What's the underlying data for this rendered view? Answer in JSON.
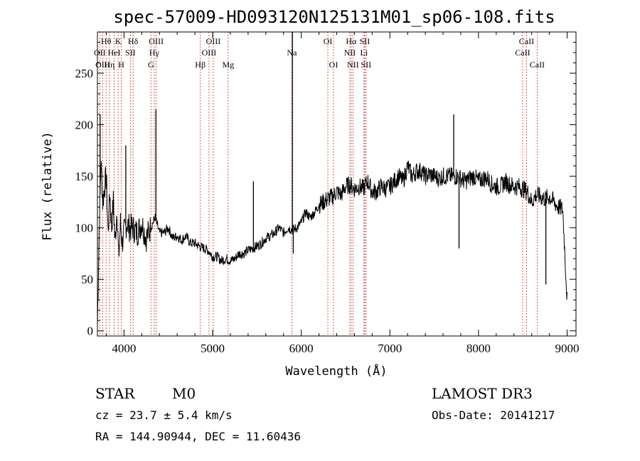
{
  "chart_data": {
    "type": "line",
    "title": "spec-57009-HD093120N125131M01_sp06-108.fits",
    "xlabel": "Wavelength (Å)",
    "ylabel": "Flux (relative)",
    "xlim": [
      3700,
      9100
    ],
    "ylim": [
      -5,
      290
    ],
    "x_ticks": [
      4000,
      5000,
      6000,
      7000,
      8000,
      9000
    ],
    "y_ticks": [
      0,
      50,
      100,
      150,
      200,
      250
    ],
    "series": [
      {
        "x": [
          3700,
          3720,
          3740,
          3760,
          3780,
          3800,
          3820,
          3840,
          3860,
          3880,
          3900,
          3920,
          3940,
          3960,
          3980,
          4000,
          4030,
          4060,
          4100,
          4150,
          4200,
          4250,
          4300,
          4350,
          4400,
          4450,
          4500,
          4550,
          4600,
          4650,
          4700,
          4750,
          4800,
          4850,
          4900,
          4950,
          5000,
          5050,
          5100,
          5150,
          5200,
          5250,
          5300,
          5350,
          5400,
          5450,
          5500,
          5550,
          5600,
          5650,
          5700,
          5750,
          5800,
          5850,
          5900,
          5950,
          6000,
          6050,
          6100,
          6150,
          6200,
          6250,
          6300,
          6350,
          6400,
          6450,
          6500,
          6550,
          6600,
          6650,
          6700,
          6750,
          6800,
          6850,
          6900,
          6950,
          7000,
          7050,
          7100,
          7150,
          7200,
          7250,
          7300,
          7350,
          7400,
          7450,
          7500,
          7550,
          7600,
          7650,
          7700,
          7750,
          7800,
          7850,
          7900,
          7950,
          8000,
          8050,
          8100,
          8150,
          8200,
          8250,
          8300,
          8350,
          8400,
          8450,
          8500,
          8550,
          8600,
          8650,
          8700,
          8750,
          8800,
          8850,
          8900,
          8950,
          9000
        ],
        "values": [
          5,
          100,
          165,
          125,
          140,
          150,
          95,
          135,
          100,
          125,
          85,
          120,
          70,
          105,
          85,
          95,
          105,
          100,
          100,
          95,
          105,
          90,
          100,
          110,
          95,
          95,
          100,
          90,
          92,
          88,
          92,
          85,
          85,
          82,
          80,
          78,
          72,
          72,
          68,
          70,
          68,
          70,
          75,
          75,
          78,
          80,
          82,
          85,
          90,
          92,
          95,
          100,
          95,
          100,
          98,
          100,
          105,
          115,
          110,
          115,
          122,
          125,
          128,
          130,
          135,
          132,
          140,
          142,
          138,
          140,
          138,
          145,
          135,
          135,
          140,
          138,
          140,
          145,
          150,
          145,
          160,
          150,
          155,
          155,
          150,
          152,
          150,
          148,
          150,
          150,
          150,
          150,
          148,
          145,
          148,
          150,
          145,
          148,
          148,
          142,
          140,
          140,
          145,
          142,
          140,
          140,
          138,
          135,
          125,
          132,
          130,
          128,
          130,
          125,
          120,
          118,
          30
        ]
      }
    ],
    "line_markers": [
      {
        "label": "Hθ",
        "wavelength": 3798,
        "row": 1
      },
      {
        "label": "OII",
        "wavelength": 3727,
        "row": 2
      },
      {
        "label": "OIII",
        "wavelength": 3760,
        "row": 3
      },
      {
        "label": "Hη",
        "wavelength": 3835,
        "row": 3
      },
      {
        "label": "HeI",
        "wavelength": 3889,
        "row": 2
      },
      {
        "label": "K",
        "wavelength": 3934,
        "row": 1
      },
      {
        "label": "H",
        "wavelength": 3969,
        "row": 3
      },
      {
        "label": "SII",
        "wavelength": 4072,
        "row": 2
      },
      {
        "label": "Hδ",
        "wavelength": 4102,
        "row": 1
      },
      {
        "label": "G",
        "wavelength": 4304,
        "row": 3
      },
      {
        "label": "Hγ",
        "wavelength": 4341,
        "row": 2
      },
      {
        "label": "OIII",
        "wavelength": 4363,
        "row": 1
      },
      {
        "label": "Hβ",
        "wavelength": 4861,
        "row": 3
      },
      {
        "label": "OIII",
        "wavelength": 4959,
        "row": 2
      },
      {
        "label": "OIII",
        "wavelength": 5007,
        "row": 1
      },
      {
        "label": "Mg",
        "wavelength": 5175,
        "row": 3
      },
      {
        "label": "Na",
        "wavelength": 5894,
        "row": 2
      },
      {
        "label": "OI",
        "wavelength": 6300,
        "row": 1
      },
      {
        "label": "OI",
        "wavelength": 6364,
        "row": 3
      },
      {
        "label": "NII",
        "wavelength": 6548,
        "row": 2
      },
      {
        "label": "Hα",
        "wavelength": 6563,
        "row": 1
      },
      {
        "label": "NII",
        "wavelength": 6583,
        "row": 3
      },
      {
        "label": "SII",
        "wavelength": 6716,
        "row": 1
      },
      {
        "label": "Li",
        "wavelength": 6708,
        "row": 2
      },
      {
        "label": "SII",
        "wavelength": 6731,
        "row": 3
      },
      {
        "label": "CaII",
        "wavelength": 8498,
        "row": 2
      },
      {
        "label": "CaII",
        "wavelength": 8542,
        "row": 1
      },
      {
        "label": "CaII",
        "wavelength": 8662,
        "row": 3
      }
    ],
    "spikes": [
      {
        "x": 3730,
        "value": 210
      },
      {
        "x": 4020,
        "value": 180
      },
      {
        "x": 4360,
        "value": 215
      },
      {
        "x": 5460,
        "value": 145
      },
      {
        "x": 5900,
        "value": 290
      },
      {
        "x": 5910,
        "value": 75
      },
      {
        "x": 7720,
        "value": 210
      },
      {
        "x": 7780,
        "value": 80
      },
      {
        "x": 8760,
        "value": 45
      }
    ]
  },
  "info": {
    "object_class": "STAR",
    "subclass": "M0",
    "survey": "LAMOST DR3",
    "redshift": "cz = 23.7 ± 5.4 km/s",
    "obs_date": "Obs-Date: 20141217",
    "coords": "RA = 144.90944, DEC =  11.60436"
  }
}
